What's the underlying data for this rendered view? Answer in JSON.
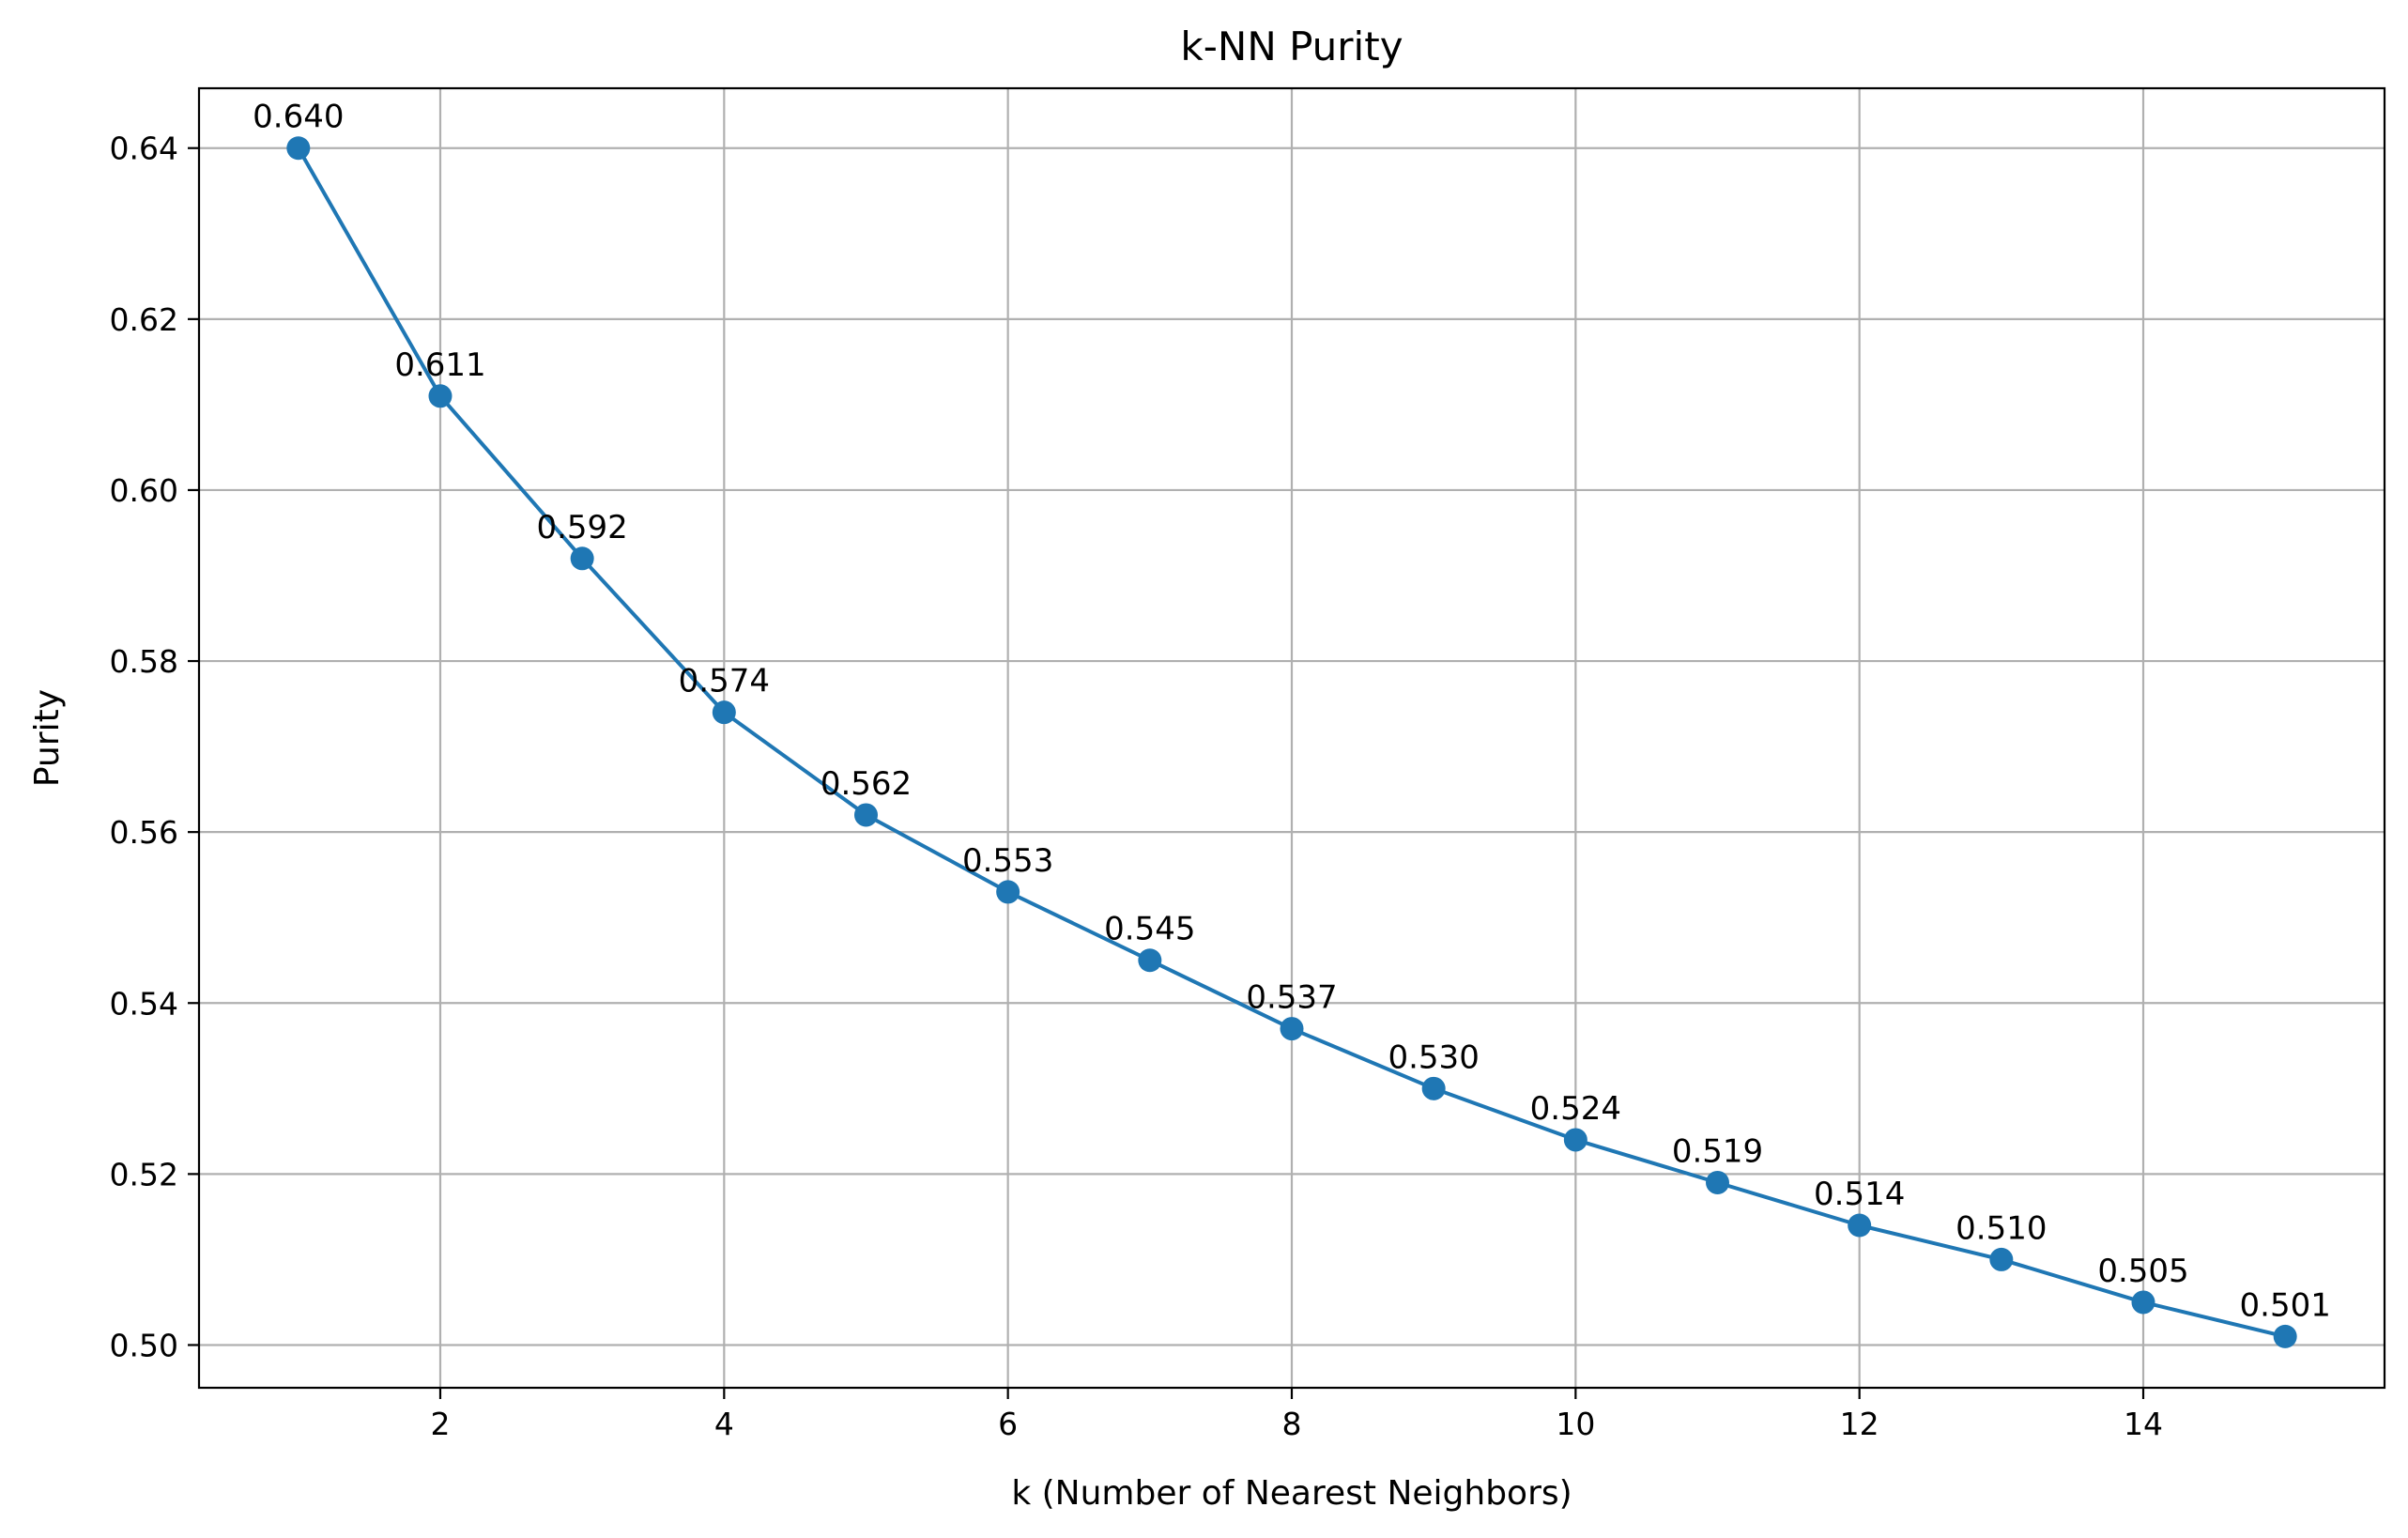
{
  "chart_data": {
    "type": "line",
    "title": "k-NN Purity",
    "xlabel": "k (Number of Nearest Neighbors)",
    "ylabel": "Purity",
    "x": [
      1,
      2,
      3,
      4,
      5,
      6,
      7,
      8,
      9,
      10,
      11,
      12,
      13,
      14,
      15
    ],
    "series": [
      {
        "values": [
          0.64,
          0.611,
          0.592,
          0.574,
          0.562,
          0.553,
          0.545,
          0.537,
          0.53,
          0.524,
          0.519,
          0.514,
          0.51,
          0.505,
          0.501
        ],
        "color": "#1f77b4",
        "marker": "circle"
      }
    ],
    "data_labels": [
      "0.640",
      "0.611",
      "0.592",
      "0.574",
      "0.562",
      "0.553",
      "0.545",
      "0.537",
      "0.530",
      "0.524",
      "0.519",
      "0.514",
      "0.510",
      "0.505",
      "0.501"
    ],
    "xlim": [
      0.3,
      15.7
    ],
    "ylim": [
      0.495,
      0.647
    ],
    "xticks": [
      2,
      4,
      6,
      8,
      10,
      12,
      14
    ],
    "xtick_labels": [
      "2",
      "4",
      "6",
      "8",
      "10",
      "12",
      "14"
    ],
    "yticks": [
      0.5,
      0.52,
      0.54,
      0.56,
      0.58,
      0.6,
      0.62,
      0.64
    ],
    "ytick_labels": [
      "0.50",
      "0.52",
      "0.54",
      "0.56",
      "0.58",
      "0.60",
      "0.62",
      "0.64"
    ],
    "grid": true,
    "legend": false
  }
}
